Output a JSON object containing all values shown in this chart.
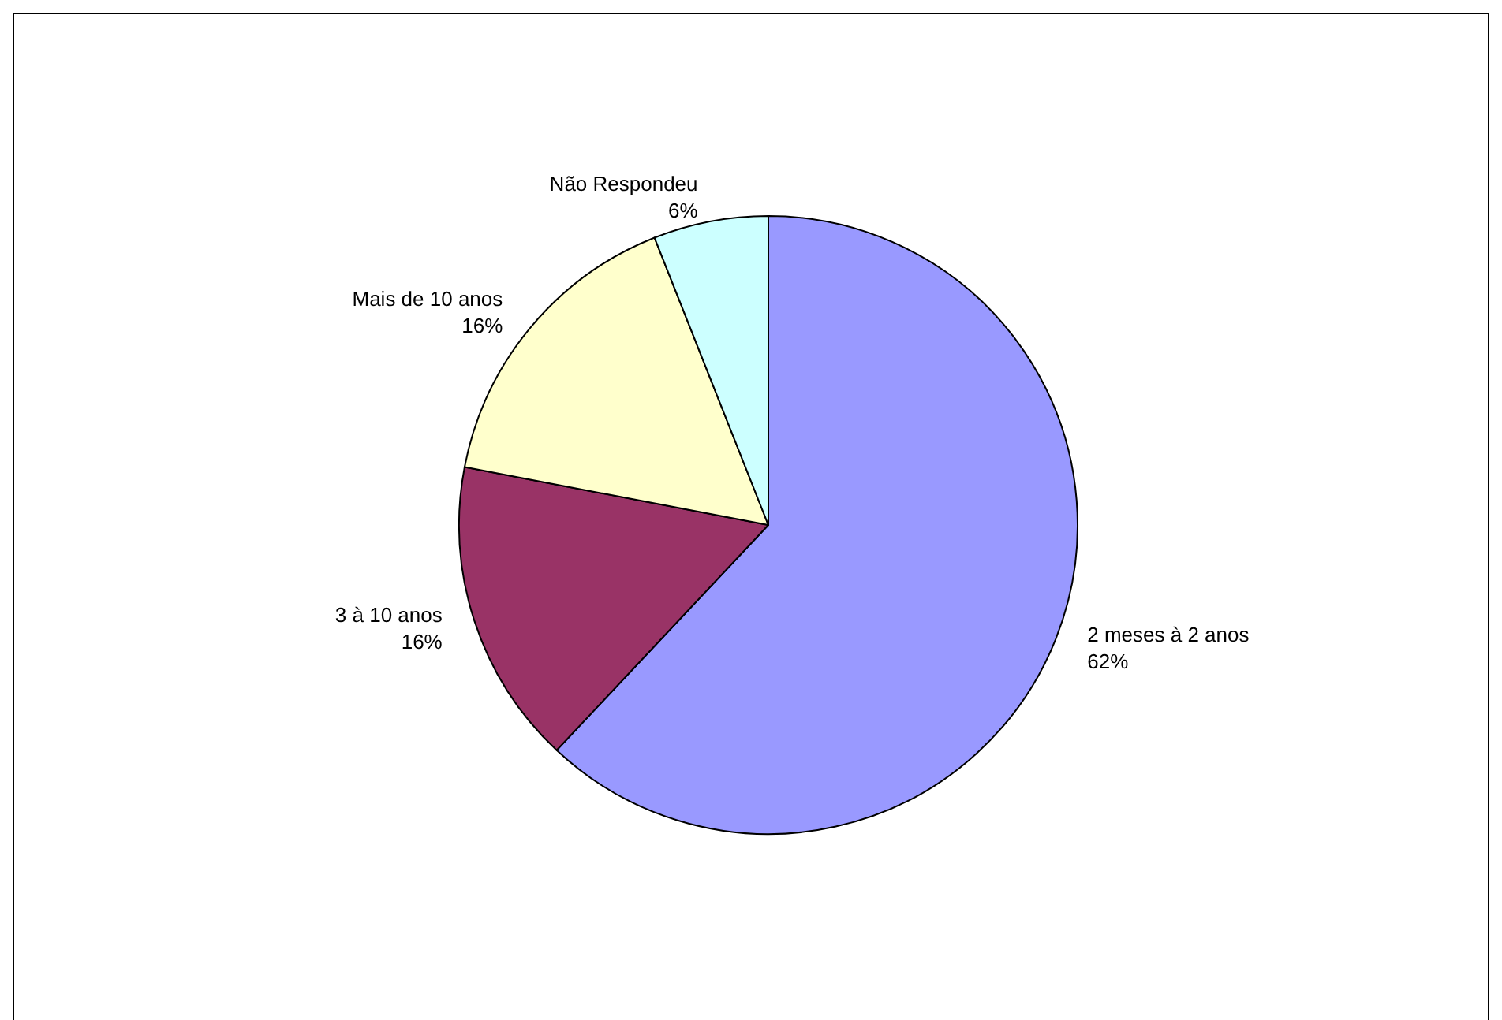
{
  "chart_data": {
    "type": "pie",
    "categories": [
      "2 meses à 2 anos",
      "3 à 10 anos",
      "Mais de 10 anos",
      "Não Respondeu"
    ],
    "values": [
      62,
      16,
      16,
      6
    ],
    "colors": [
      "#9999ff",
      "#993366",
      "#ffffcc",
      "#ccffff"
    ],
    "value_labels": [
      "62%",
      "16%",
      "16%",
      "6%"
    ],
    "legend": false
  }
}
